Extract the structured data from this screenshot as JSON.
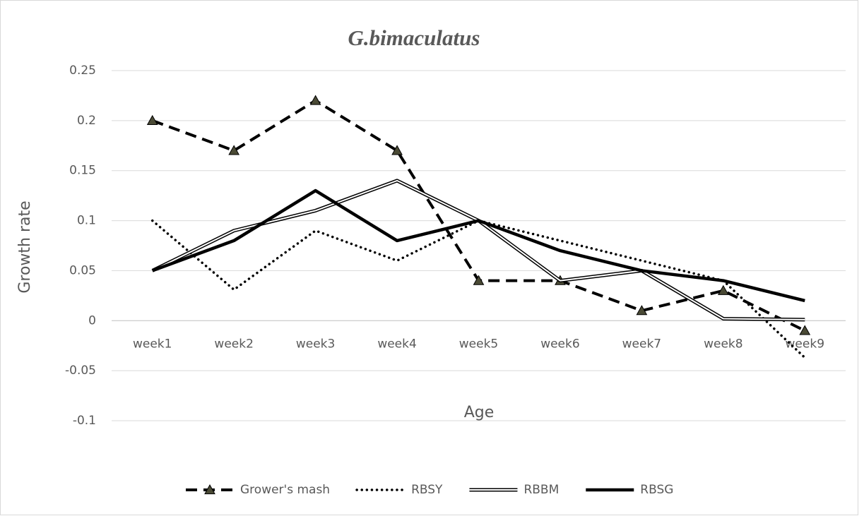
{
  "chart_data": {
    "type": "line",
    "title": "G.bimaculatus",
    "x_label": "Age",
    "y_label": "Growth rate",
    "categories": [
      "week1",
      "week2",
      "week3",
      "week4",
      "week5",
      "week6",
      "week7",
      "week8",
      "week9"
    ],
    "series": [
      {
        "name": "Grower's mash",
        "color": "#000000",
        "style": "dashed",
        "marker": "triangle",
        "marker_color": "#4a4a35",
        "values": [
          0.2,
          0.17,
          0.22,
          0.17,
          0.04,
          0.04,
          0.01,
          0.03,
          -0.01
        ]
      },
      {
        "name": "RBSY",
        "color": "#000000",
        "style": "dotted",
        "values": [
          0.1,
          0.031,
          0.09,
          0.06,
          0.1,
          0.08,
          0.06,
          0.04,
          -0.037
        ]
      },
      {
        "name": "RBBM",
        "color": "#000000",
        "style": "double",
        "values": [
          0.05,
          0.09,
          0.11,
          0.14,
          0.1,
          0.04,
          0.05,
          0.002,
          0.001
        ]
      },
      {
        "name": "RBSG",
        "color": "#000000",
        "style": "solid",
        "values": [
          0.05,
          0.08,
          0.13,
          0.08,
          0.1,
          0.07,
          0.05,
          0.04,
          0.02
        ]
      }
    ],
    "ylim": [
      -0.1,
      0.25
    ],
    "yticks": [
      -0.1,
      -0.05,
      0,
      0.05,
      0.1,
      0.15,
      0.2,
      0.25
    ],
    "grid": true,
    "legend": "bottom"
  }
}
